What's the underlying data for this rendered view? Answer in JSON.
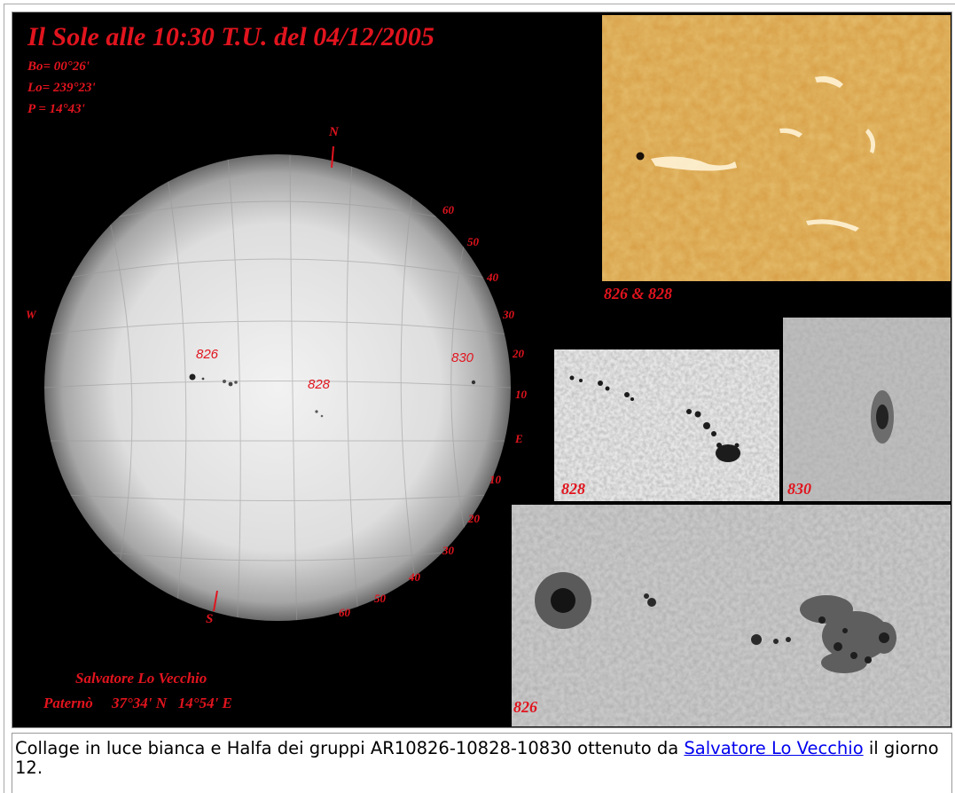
{
  "collage": {
    "title": "Il Sole alle 10:30 T.U. del 04/12/2005",
    "params": [
      "Bo= 00°26'",
      "Lo= 239°23'",
      "P = 14°43'"
    ],
    "compass": {
      "north": "N",
      "south": "S",
      "west": "W",
      "east": "E"
    },
    "scale_upper": [
      "60",
      "50",
      "40",
      "30",
      "20",
      "10"
    ],
    "scale_lower": [
      "10",
      "20",
      "30",
      "40",
      "50",
      "60"
    ],
    "groups_on_disk": [
      "826",
      "828",
      "830"
    ],
    "panels": {
      "halpha_label": "826 & 828",
      "p828_label": "828",
      "p830_label": "830",
      "p826_label": "826"
    },
    "credit": {
      "author": "Salvatore Lo Vecchio",
      "location": "Paternò     37°34' N   14°54' E"
    }
  },
  "caption": {
    "text_before": "Collage in luce bianca e Halfa dei gruppi AR10826-10828-10830 ottenuto da ",
    "link_text": "Salvatore Lo Vecchio",
    "text_after": " il giorno 12."
  },
  "colors": {
    "label_red": "#e1141e",
    "halpha_orange": "#c98a28",
    "link_blue": "#0000ee"
  }
}
